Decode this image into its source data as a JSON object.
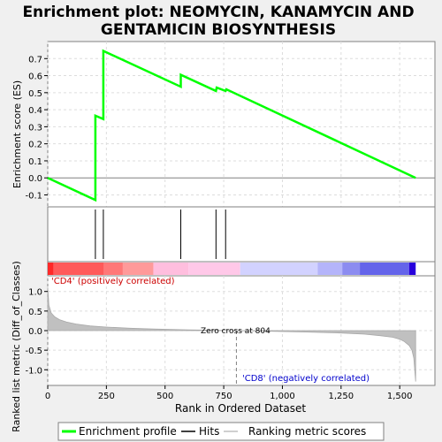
{
  "chart_data": {
    "type": "line",
    "title": "Enrichment plot: NEOMYCIN, KANAMYCIN AND GENTAMICIN BIOSYNTHESIS",
    "title_lines": [
      "Enrichment plot: NEOMYCIN, KANAMYCIN AND",
      "GENTAMICIN BIOSYNTHESIS"
    ],
    "xlabel": "Rank in Ordered Dataset",
    "xlim": [
      0,
      1650
    ],
    "x_ticks": [
      0,
      250,
      500,
      750,
      1000,
      1250,
      1500
    ],
    "x_tick_labels": [
      "0",
      "250",
      "500",
      "750",
      "1,000",
      "1,250",
      "1,500"
    ],
    "grid": true,
    "es_panel": {
      "ylabel": "Enrichment score (ES)",
      "ylim": [
        -0.17,
        0.8
      ],
      "y_ticks": [
        -0.1,
        0.0,
        0.1,
        0.2,
        0.3,
        0.4,
        0.5,
        0.6,
        0.7
      ],
      "y_tick_labels": [
        "-0.1",
        "0.0",
        "0.1",
        "0.2",
        "0.3",
        "0.4",
        "0.5",
        "0.6",
        "0.7"
      ],
      "series": [
        {
          "name": "Enrichment profile",
          "color": "#00ff00",
          "x": [
            0,
            203,
            203,
            237,
            237,
            567,
            567,
            717,
            720,
            758,
            761,
            1568
          ],
          "y": [
            0.0,
            -0.13,
            0.365,
            0.345,
            0.745,
            0.535,
            0.605,
            0.51,
            0.53,
            0.51,
            0.52,
            0.0
          ]
        }
      ]
    },
    "hits_panel": {
      "series_name": "Hits",
      "hit_positions": [
        203,
        237,
        567,
        717,
        758
      ]
    },
    "ranking_panel": {
      "ylabel": "Ranked list metric (Diff_of_Classes)",
      "ylim": [
        -1.4,
        1.4
      ],
      "y_ticks": [
        -1.0,
        -0.5,
        0.0,
        0.5,
        1.0
      ],
      "y_tick_labels": [
        "-1.0",
        "-0.5",
        "0.0",
        "0.5",
        "1.0"
      ],
      "series_name": "Ranking metric scores",
      "color": "#c0c0c0",
      "curve_x": [
        0,
        5,
        15,
        30,
        50,
        80,
        120,
        180,
        250,
        350,
        450,
        600,
        800,
        950,
        1100,
        1250,
        1350,
        1420,
        1470,
        1500,
        1520,
        1540,
        1552,
        1560,
        1568
      ],
      "curve_y": [
        1.1,
        0.65,
        0.45,
        0.35,
        0.28,
        0.22,
        0.17,
        0.12,
        0.09,
        0.06,
        0.04,
        0.02,
        0.0,
        -0.015,
        -0.035,
        -0.06,
        -0.09,
        -0.13,
        -0.17,
        -0.22,
        -0.28,
        -0.38,
        -0.5,
        -0.7,
        -1.3
      ],
      "zero_cross_label": "Zero cross at 804",
      "zero_cross_rank": 804,
      "positive_label": "'CD4' (positively correlated)",
      "negative_label": "'CD8' (negatively correlated)"
    },
    "color_band": [
      {
        "from": 0,
        "to": 25,
        "color": "#ff2828"
      },
      {
        "from": 25,
        "to": 240,
        "color": "#ff5a5a"
      },
      {
        "from": 240,
        "to": 320,
        "color": "#ff7878"
      },
      {
        "from": 320,
        "to": 450,
        "color": "#ff9a9a"
      },
      {
        "from": 450,
        "to": 600,
        "color": "#ffbede"
      },
      {
        "from": 600,
        "to": 820,
        "color": "#ffc8e8"
      },
      {
        "from": 820,
        "to": 1150,
        "color": "#d2d2ff"
      },
      {
        "from": 1150,
        "to": 1255,
        "color": "#b4b4fa"
      },
      {
        "from": 1255,
        "to": 1330,
        "color": "#8c8cf0"
      },
      {
        "from": 1330,
        "to": 1540,
        "color": "#6464ea"
      },
      {
        "from": 1540,
        "to": 1568,
        "color": "#2800dc"
      }
    ],
    "legend": {
      "placement": "bottom",
      "entries": [
        "Enrichment profile",
        "Hits",
        "Ranking metric scores"
      ]
    }
  }
}
